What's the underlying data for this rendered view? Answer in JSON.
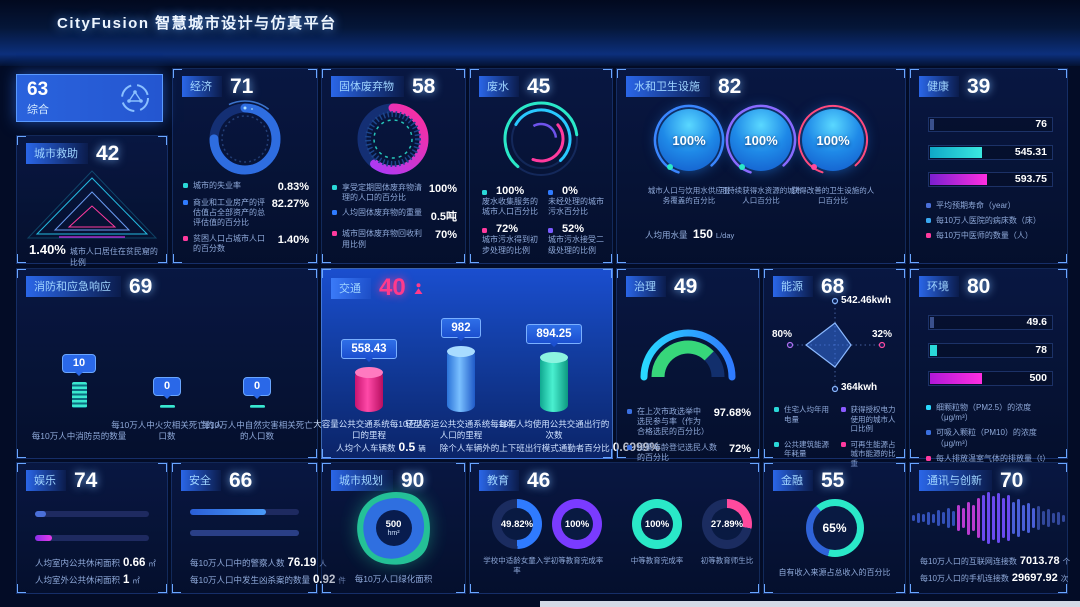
{
  "header": {
    "title": "CityFusion 智慧城市设计与仿真平台"
  },
  "icons": {
    "composite": "network-hub-icon",
    "traffic_score": "person-icon"
  },
  "colors": {
    "cyan": "#29d8ff",
    "teal": "#2ae8c8",
    "blue": "#2f7bff",
    "purple": "#7a3bff",
    "magenta": "#ff2e9a",
    "panel_accent": "#6aa6ff"
  },
  "composite": {
    "value": "63",
    "label": "综合"
  },
  "city_rescue": {
    "title": "城市救助",
    "score": "42",
    "stat_value": "1.40%",
    "stat_label": "城市人口居住在贫民窟的比例"
  },
  "economy": {
    "title": "经济",
    "score": "71",
    "items": [
      {
        "label": "城市的失业率",
        "value": "0.83%",
        "color": "#2ad8d8"
      },
      {
        "label": "商业和工业房产的评估值占全部资产的总评估值的百分比",
        "value": "82.27%",
        "color": "#2f7bff"
      },
      {
        "label": "贫困人口占城市人口的百分数",
        "value": "1.40%",
        "color": "#ff3a9e"
      }
    ]
  },
  "solid_waste": {
    "title": "固体废弃物",
    "score": "58",
    "items": [
      {
        "label": "享受定期固体废弃物清理的人口的百分比",
        "value": "100%",
        "color": "#2ad8d8"
      },
      {
        "label": "人均固体废弃物的重量",
        "value": "0.5吨",
        "color": "#2f7bff"
      },
      {
        "label": "城市固体废弃物回收利用比例",
        "value": "70%",
        "color": "#ff3a9e"
      }
    ]
  },
  "wastewater": {
    "title": "废水",
    "score": "45",
    "items": [
      {
        "value": "100%",
        "label": "废水收集服务的城市人口百分比",
        "color": "#2ad8d8"
      },
      {
        "value": "0%",
        "label": "未经处理的城市污水百分比",
        "color": "#2f7bff"
      },
      {
        "value": "72%",
        "label": "城市污水得到初步处理的比例",
        "color": "#ff3a9e"
      },
      {
        "value": "52%",
        "label": "城市污水接受二级处理的比例",
        "color": "#7a5aff"
      }
    ]
  },
  "water_sanitation": {
    "title": "水和卫生设施",
    "score": "82",
    "gauges": [
      {
        "value": "100%",
        "label": "城市人口与饮用水供应服务覆盖的百分比"
      },
      {
        "value": "100%",
        "label": "可持续获得水资源的城市人口百分比"
      },
      {
        "value": "100%",
        "label": "获得改善的卫生设施的人口百分比"
      }
    ],
    "per_capita": {
      "label": "人均用水量",
      "value": "150",
      "unit": "L/day"
    }
  },
  "health": {
    "title": "健康",
    "score": "39",
    "bars": [
      {
        "value": "76",
        "label": "平均预期寿命（year）",
        "pct": 3,
        "color": "#3a508c"
      },
      {
        "value": "545.31",
        "label": "每10万人医院的病床数（床）",
        "pct": 42,
        "color": "#29d8ff"
      },
      {
        "value": "593.75",
        "label": "每10万中医师的数量（人）",
        "pct": 46,
        "color": "#ff2ee0"
      }
    ]
  },
  "fire_emergency": {
    "title": "消防和应急响应",
    "score": "69",
    "bars": [
      {
        "value": "10",
        "label": "每10万人中消防员的数量",
        "hpx": 26
      },
      {
        "value": "0",
        "label": "每10万人中火灾相关死亡的人口数",
        "hpx": 3
      },
      {
        "value": "0",
        "label": "每10万人中自然灾害相关死亡的人口数",
        "hpx": 3
      }
    ]
  },
  "traffic": {
    "title": "交通",
    "score": "40",
    "bars": [
      {
        "value": "558.43",
        "label": "大容量公共交通系统每10万人口的里程",
        "hpx": 43
      },
      {
        "value": "982",
        "label": "轻型客运公共交通系统每10万人口的里程",
        "hpx": 64
      },
      {
        "value": "894.25",
        "label": "每年人均使用公共交通出行的次数",
        "hpx": 58
      }
    ],
    "footnotes": [
      {
        "label": "人均个人车辆数",
        "value": "0.5",
        "unit": "辆"
      },
      {
        "label": "除个人车辆外的上下班出行模式通勤者百分比",
        "value": "0.6999%",
        "unit": ""
      }
    ]
  },
  "governance": {
    "title": "治理",
    "score": "49",
    "items": [
      {
        "label": "在上次市政选举中选民参与率（作为合格选民的百分比）",
        "value": "97.68%"
      },
      {
        "label": "投票年龄登记选民人数的百分比",
        "value": "72%"
      }
    ]
  },
  "energy": {
    "title": "能源",
    "score": "68",
    "axis_top": "542.46kwh",
    "axis_right": "32%",
    "axis_bottom": "364kwh",
    "axis_left": "80%",
    "legend": [
      {
        "label": "住宅人均年用电量",
        "color": "#2ad8d8"
      },
      {
        "label": "获得授权电力使用的城市人口比例",
        "color": "#8a5aff"
      },
      {
        "label": "公共建筑能源年耗量",
        "color": "#2ad8d8"
      },
      {
        "label": "可再生能源占城市能源的比重",
        "color": "#ff3a9e"
      }
    ]
  },
  "environment": {
    "title": "环境",
    "score": "80",
    "bars": [
      {
        "value": "49.6",
        "label": "细颗粒物（PM2.5）的浓度（μg/m³）",
        "pct": 3,
        "color": "#3a508c"
      },
      {
        "value": "78",
        "label": "可吸入颗粒（PM10）的浓度（μg/m³）",
        "pct": 6,
        "color": "#2ad8d8"
      },
      {
        "value": "500",
        "label": "每人排放温室气体的排放量（t）",
        "pct": 42,
        "color": "#ff2ee0"
      }
    ]
  },
  "entertainment": {
    "title": "娱乐",
    "score": "74",
    "bars": [
      {
        "label": "人均室内公共休闲面积",
        "value": "0.66",
        "unit": "㎡",
        "pct": 10
      },
      {
        "label": "人均室外公共休闲面积",
        "value": "1",
        "unit": "㎡",
        "pct": 15
      }
    ]
  },
  "safety": {
    "title": "安全",
    "score": "66",
    "bars": [
      {
        "label": "每10万人口中的警察人数",
        "value": "76.19",
        "unit": "人",
        "pct": 70
      },
      {
        "label": "每10万人口中发生凶杀案的数量",
        "value": "0.92",
        "unit": "件",
        "pct": 100
      }
    ]
  },
  "urban_planning": {
    "title": "城市规划",
    "score": "90",
    "center_value": "500",
    "center_unit": "hm²",
    "caption": "每10万人口绿化面积"
  },
  "education": {
    "title": "教育",
    "score": "46",
    "donuts": [
      {
        "value": "49.82%",
        "label": "学校中适龄女童入学率",
        "pct": 49.82,
        "color": "#2f7bff",
        "rest": "#1b2c60"
      },
      {
        "value": "100%",
        "label": "初等教育完成率",
        "pct": 100,
        "color": "#7a3bff",
        "rest": "#1b2c60"
      },
      {
        "value": "100%",
        "label": "中等教育完成率",
        "pct": 100,
        "color": "#2ae8c8",
        "rest": "#1b2c60"
      },
      {
        "value": "27.89%",
        "label": "初等教育师生比",
        "pct": 27.89,
        "color": "#ff4a9e",
        "rest": "#1b2c60"
      }
    ]
  },
  "finance": {
    "title": "金融",
    "score": "55",
    "gauge": {
      "value": "65%",
      "pct": 65,
      "color": "#2ae8c8",
      "rest": "#2f63d8",
      "from": -40
    },
    "caption": "自有收入来源占总收入的百分比"
  },
  "communication": {
    "title": "通讯与创新",
    "score": "70",
    "stats": [
      {
        "label": "每10万人口的互联网连接数",
        "value": "7013.78",
        "unit": "个"
      },
      {
        "label": "每10万人口的手机连接数",
        "value": "29697.92",
        "unit": "次"
      }
    ]
  }
}
